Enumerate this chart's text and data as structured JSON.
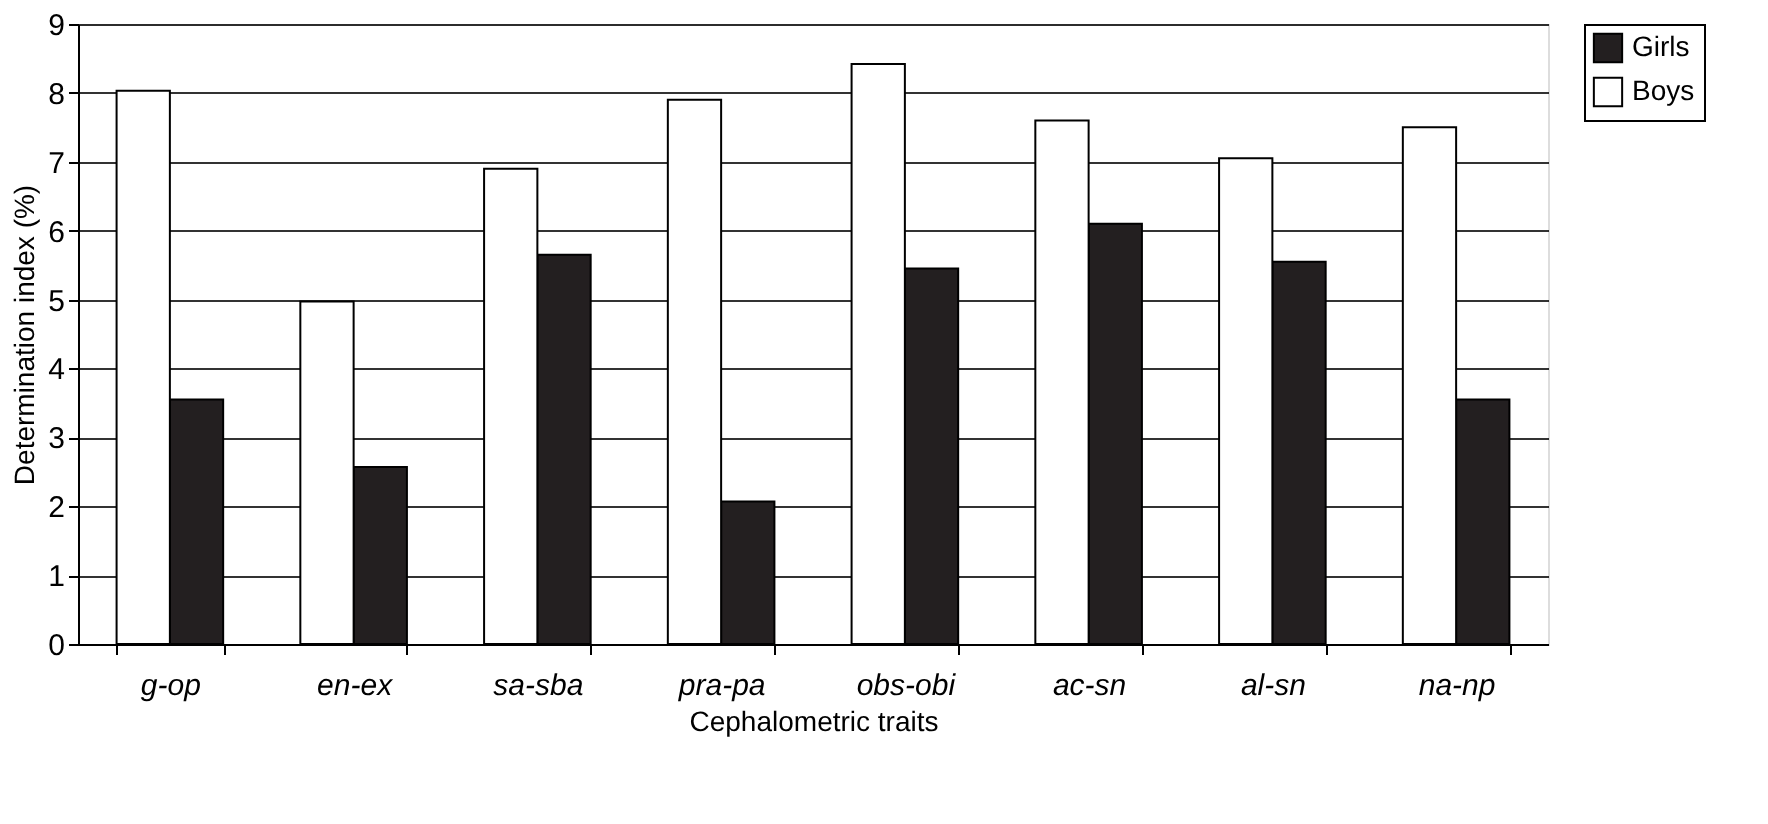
{
  "chart_data": {
    "type": "bar",
    "xlabel": "Cephalometric traits",
    "ylabel": "Determination index (%)",
    "categories": [
      "g-op",
      "en-ex",
      "sa-sba",
      "pra-pa",
      "obs-obi",
      "ac-sn",
      "al-sn",
      "na-np"
    ],
    "series": [
      {
        "name": "Girls",
        "color": "#231f20",
        "values": [
          3.55,
          2.57,
          5.65,
          2.07,
          5.45,
          6.1,
          5.55,
          3.55
        ]
      },
      {
        "name": "Boys",
        "color": "#ffffff",
        "values": [
          8.03,
          4.97,
          6.9,
          7.9,
          8.42,
          7.6,
          7.05,
          7.5
        ]
      }
    ],
    "ylim": [
      0,
      9
    ],
    "yticks": [
      0,
      1,
      2,
      3,
      4,
      5,
      6,
      7,
      8,
      9
    ],
    "grid": "y",
    "legend": "right"
  }
}
